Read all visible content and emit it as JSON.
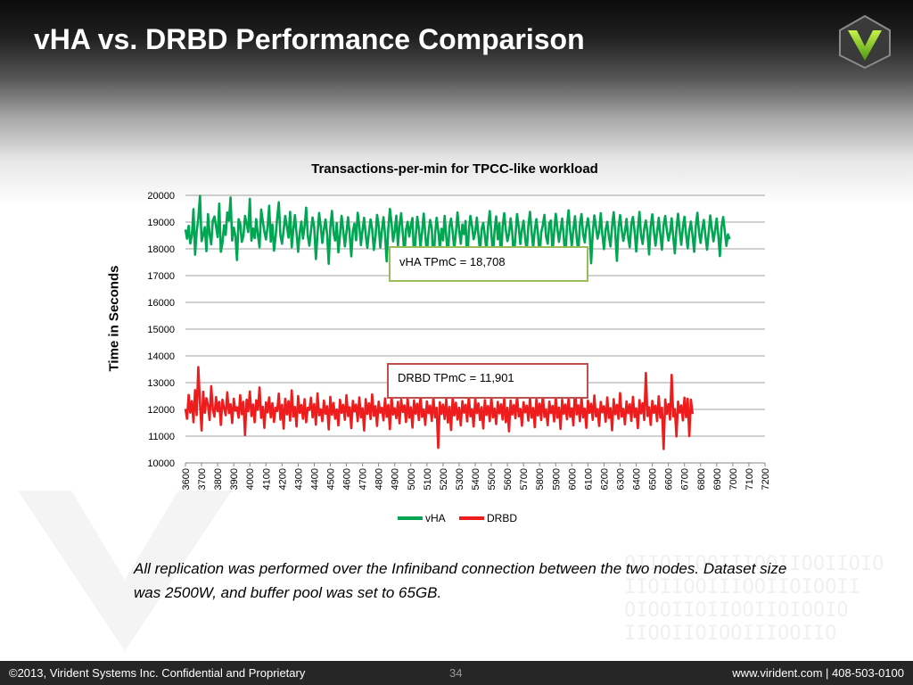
{
  "slide": {
    "title": "vHA vs. DRBD Performance Comparison",
    "caption": "All replication was performed over the Infiniband connection between the two nodes.  Dataset size was 2500W, and buffer pool was set to 65GB.",
    "logo_icon": "virident-v-logo-icon"
  },
  "annotations": {
    "vha": "vHA TPmC = 18,708",
    "drbd": "DRBD TPmC = 11,901"
  },
  "footer": {
    "copyright": "©2013, Virident Systems Inc. Confidential and Proprietary",
    "page_number": "34",
    "contact": "www.virident.com  |  408-503-0100"
  },
  "colors": {
    "vha": "#00a651",
    "drbd": "#ee1c1c",
    "vha_box_border": "#9bbb59",
    "drbd_box_border": "#c0504d"
  },
  "chart_data": {
    "type": "line",
    "title": "Transactions-per-min for TPCC-like workload",
    "xlabel": "",
    "ylabel": "Time in Seconds",
    "xlim": [
      3600,
      7200
    ],
    "ylim": [
      10000,
      20000
    ],
    "y_ticks": [
      10000,
      11000,
      12000,
      13000,
      14000,
      15000,
      16000,
      17000,
      18000,
      19000,
      20000
    ],
    "x_ticks": [
      3600,
      3700,
      3800,
      3900,
      4000,
      4100,
      4200,
      4300,
      4400,
      4500,
      4600,
      4700,
      4800,
      4900,
      5000,
      5100,
      5200,
      5300,
      5400,
      5500,
      5600,
      5700,
      5800,
      5900,
      6000,
      6100,
      6200,
      6300,
      6400,
      6500,
      6600,
      6700,
      6800,
      6900,
      7000,
      7100,
      7200
    ],
    "grid": "horizontal",
    "legend_position": "bottom",
    "x_step": 10,
    "series": [
      {
        "name": "vHA",
        "values": [
          18720,
          18380,
          18860,
          18200,
          18500,
          19480,
          17780,
          18650,
          19120,
          19980,
          18290,
          18520,
          18810,
          17910,
          19300,
          18540,
          18170,
          19060,
          19210,
          18840,
          18440,
          19690,
          17890,
          18220,
          18880,
          18520,
          19360,
          19060,
          19920,
          18310,
          18790,
          18490,
          17580,
          19110,
          18940,
          18260,
          18470,
          19230,
          18950,
          18630,
          19870,
          18310,
          18760,
          18400,
          19110,
          18500,
          18060,
          19470,
          19050,
          18640,
          18350,
          18820,
          19610,
          18270,
          18910,
          17930,
          18460,
          19150,
          19740,
          18510,
          18190,
          18690,
          19230,
          18830,
          18420,
          19380,
          18060,
          18730,
          19260,
          18570,
          17890,
          18610,
          19020,
          18380,
          18840,
          19540,
          18490,
          18120,
          18680,
          19170,
          18810,
          17620,
          18540,
          19340,
          18850,
          18220,
          18730,
          19100,
          18530,
          17440,
          18800,
          19420,
          18610,
          18310,
          18960,
          17870,
          18490,
          19230,
          18720,
          18090,
          18630,
          19180,
          18540,
          17720,
          18670,
          18940,
          18320,
          19350,
          18860,
          18140,
          18700,
          19160,
          18510,
          18040,
          18620,
          19100,
          18750,
          17960,
          18440,
          19270,
          18870,
          18050,
          18690,
          19180,
          18520,
          17530,
          18740,
          19490,
          18980,
          18280,
          18660,
          19240,
          18110,
          18880,
          19330,
          18570,
          17780,
          18720,
          19010,
          18460,
          18890,
          19150,
          17640,
          18420,
          19200,
          18760,
          18080,
          18630,
          19320,
          18530,
          17830,
          18590,
          19080,
          18770,
          17310,
          18520,
          19160,
          18690,
          18030,
          18750,
          18320,
          19230,
          18470,
          17680,
          18830,
          19130,
          18640,
          17990,
          18580,
          19360,
          18720,
          18190,
          18910,
          18550,
          19040,
          17370,
          18690,
          19230,
          18850,
          18360,
          18610,
          19170,
          18520,
          17900,
          18740,
          18970,
          18490,
          17950,
          18840,
          19410,
          18590,
          17770,
          18690,
          19210,
          18360,
          18950,
          17510,
          18830,
          19330,
          18710,
          18290,
          18560,
          19140,
          18630,
          17640,
          18490,
          19300,
          18820,
          18180,
          18720,
          19050,
          18400,
          17920,
          18870,
          19380,
          18640,
          18050,
          18710,
          19110,
          18550,
          17720,
          18600,
          18890,
          19270,
          18470,
          18190,
          18960,
          19060,
          17850,
          18630,
          19310,
          18780,
          18260,
          18700,
          19130,
          18460,
          17600,
          18850,
          19440,
          18660,
          18100,
          18730,
          19220,
          18420,
          17870,
          18910,
          19300,
          18550,
          18240,
          18800,
          19140,
          18690,
          17460,
          18580,
          19250,
          18840,
          18380,
          18660,
          19330,
          18520,
          17990,
          18730,
          19010,
          18460,
          18090,
          18850,
          19370,
          18600,
          17550,
          18780,
          19260,
          18710,
          18300,
          18620,
          19120,
          18440,
          18060,
          18930,
          19190,
          18640,
          17900,
          18720,
          19380,
          18490,
          18180,
          18770,
          19060,
          18590,
          17790,
          18840,
          19290,
          18660,
          18120,
          18620,
          19160,
          18530,
          17970,
          18880,
          19230,
          18700,
          18310,
          18600,
          19140,
          18440,
          17830,
          18750,
          19310,
          18670,
          18150,
          18810,
          19200,
          18530,
          18020,
          18690,
          19020,
          18470,
          17890,
          18860,
          19350,
          18620,
          18220,
          18730,
          19080,
          18490,
          17970,
          18580,
          19250,
          18740,
          18280,
          18690,
          19130,
          18520,
          17730,
          18820,
          19190,
          18650,
          18110,
          18540,
          18360
        ]
      },
      {
        "name": "DRBD",
        "values": [
          12020,
          11650,
          12540,
          11880,
          12310,
          11520,
          12720,
          11790,
          13580,
          12230,
          11210,
          12660,
          11870,
          12420,
          12150,
          11600,
          12870,
          12010,
          11730,
          12460,
          11930,
          12280,
          11420,
          12360,
          12050,
          11780,
          12640,
          11860,
          12190,
          11490,
          12400,
          11950,
          12080,
          11690,
          12530,
          11820,
          12280,
          11040,
          12360,
          11930,
          12670,
          11750,
          12180,
          11520,
          12340,
          11980,
          12820,
          11680,
          12100,
          11310,
          12260,
          11890,
          12450,
          11700,
          12230,
          11530,
          12060,
          11940,
          12590,
          11620,
          12170,
          11280,
          12400,
          11810,
          12310,
          11580,
          12710,
          11730,
          12090,
          11360,
          12500,
          11870,
          12160,
          11650,
          12380,
          11520,
          12060,
          11980,
          12440,
          11700,
          12200,
          11430,
          12600,
          11780,
          12000,
          11560,
          12330,
          11840,
          12120,
          11250,
          12470,
          11800,
          12240,
          11650,
          12000,
          11400,
          12360,
          11870,
          12170,
          11610,
          12530,
          11750,
          12080,
          11300,
          12320,
          11920,
          12180,
          11560,
          12450,
          11700,
          12040,
          11210,
          12380,
          11830,
          12230,
          11640,
          12560,
          11760,
          12120,
          11380,
          12290,
          11880,
          12060,
          11590,
          12410,
          11720,
          12170,
          11260,
          12500,
          11810,
          12040,
          11670,
          12280,
          11480,
          12360,
          11900,
          12150,
          11530,
          12430,
          11690,
          12080,
          11320,
          12340,
          11840,
          12210,
          11600,
          12520,
          11720,
          12000,
          11420,
          12300,
          11860,
          12140,
          11570,
          12460,
          11700,
          12060,
          10560,
          12270,
          11830,
          12180,
          11640,
          12380,
          11510,
          12090,
          11230,
          12440,
          11770,
          12250,
          11620,
          12060,
          11400,
          12310,
          11880,
          12170,
          11550,
          12490,
          11740,
          12010,
          11360,
          12400,
          11860,
          12220,
          11600,
          12080,
          11290,
          12350,
          11790,
          12130,
          11560,
          12470,
          11700,
          12030,
          11450,
          12280,
          11850,
          12190,
          11620,
          12410,
          11520,
          12060,
          11180,
          12330,
          11810,
          12160,
          11670,
          12500,
          11740,
          12020,
          11390,
          12270,
          11890,
          12140,
          11580,
          12430,
          11690,
          12050,
          11330,
          12380,
          11770,
          12210,
          11600,
          12580,
          11720,
          12000,
          11410,
          12290,
          11860,
          12130,
          11550,
          12460,
          11690,
          12070,
          11270,
          12360,
          11840,
          12180,
          11630,
          12420,
          11720,
          12040,
          11400,
          12760,
          11810,
          12150,
          11560,
          12480,
          11700,
          12030,
          11310,
          12330,
          11870,
          12210,
          11610,
          12520,
          11740,
          12010,
          11380,
          12280,
          11890,
          12120,
          11540,
          12450,
          11680,
          12050,
          11220,
          12380,
          11820,
          12170,
          11650,
          12610,
          11730,
          12020,
          11440,
          12300,
          11860,
          12190,
          11570,
          12470,
          11710,
          12040,
          11300,
          12350,
          11850,
          12230,
          11600,
          13360,
          11750,
          12080,
          11420,
          12320,
          11870,
          12140,
          11560,
          12490,
          11690,
          12060,
          10520,
          12370,
          11830,
          12200,
          11620,
          13290,
          11740,
          12010,
          10990,
          12290,
          11880,
          12150,
          11590,
          12440,
          11710,
          12400,
          11000,
          12360,
          11830
        ]
      }
    ]
  }
}
